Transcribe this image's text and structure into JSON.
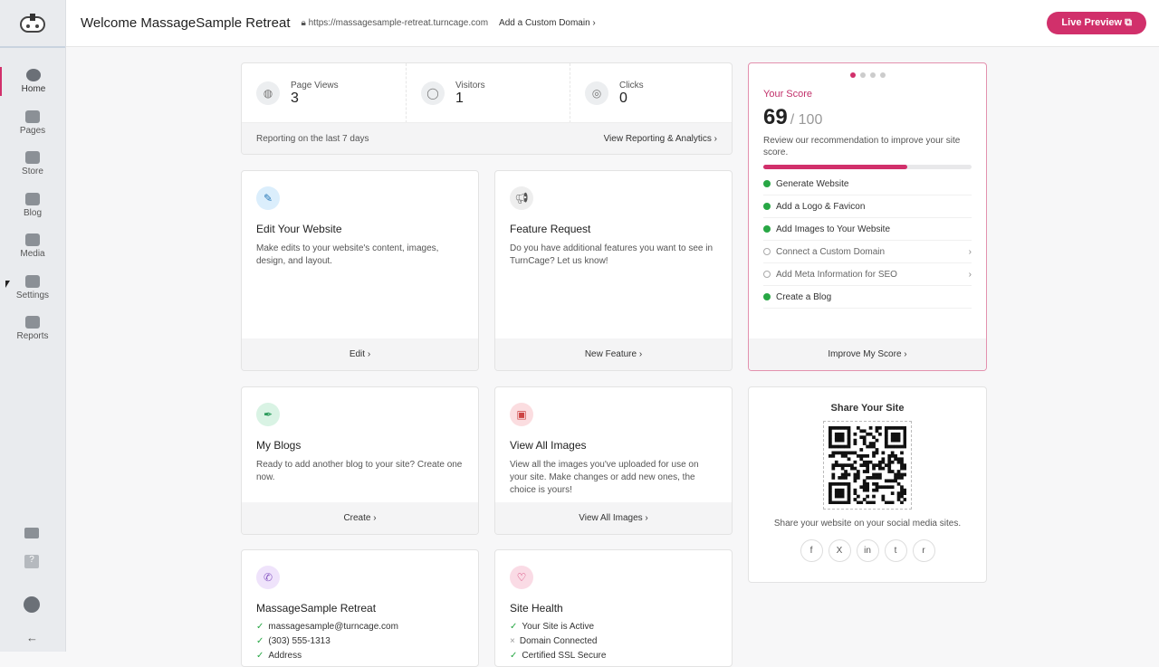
{
  "header": {
    "title": "Welcome MassageSample Retreat",
    "url": "https://massagesample-retreat.turncage.com",
    "custom_domain": "Add a Custom Domain",
    "live_preview": "Live Preview"
  },
  "sidebar": {
    "items": [
      {
        "label": "Home",
        "icon": "gauge-icon"
      },
      {
        "label": "Pages",
        "icon": "pages-icon"
      },
      {
        "label": "Store",
        "icon": "store-icon"
      },
      {
        "label": "Blog",
        "icon": "pencil-icon"
      },
      {
        "label": "Media",
        "icon": "image-icon"
      },
      {
        "label": "Settings",
        "icon": "sliders-icon"
      },
      {
        "label": "Reports",
        "icon": "bar-chart-icon"
      }
    ]
  },
  "stats": {
    "items": [
      {
        "label": "Page Views",
        "value": "3"
      },
      {
        "label": "Visitors",
        "value": "1"
      },
      {
        "label": "Clicks",
        "value": "0"
      }
    ],
    "note": "Reporting on the last 7 days",
    "link": "View Reporting & Analytics"
  },
  "cards": [
    {
      "title": "Edit Your Website",
      "desc": "Make edits to your website's content, images, design, and layout.",
      "action": "Edit"
    },
    {
      "title": "Feature Request",
      "desc": "Do you have additional features you want to see in TurnCage? Let us know!",
      "action": "New Feature"
    },
    {
      "title": "My Blogs",
      "desc": "Ready to add another blog to your site? Create one now.",
      "action": "Create"
    },
    {
      "title": "View All Images",
      "desc": "View all the images you've uploaded for use on your site. Make changes or add new ones, the choice is yours!",
      "action": "View All Images"
    }
  ],
  "contact": {
    "title": "MassageSample Retreat",
    "items": [
      "massagesample@turncage.com",
      "(303) 555-1313",
      "Address"
    ]
  },
  "health": {
    "title": "Site Health",
    "items": [
      {
        "text": "Your Site is Active",
        "ok": true
      },
      {
        "text": "Domain Connected",
        "ok": false
      },
      {
        "text": "Certified SSL Secure",
        "ok": true
      }
    ]
  },
  "score": {
    "title": "Your Score",
    "value": "69",
    "max": "/ 100",
    "percent": 69,
    "desc": "Review our recommendation to improve your site score.",
    "items": [
      {
        "text": "Generate Website",
        "done": true
      },
      {
        "text": "Add a Logo & Favicon",
        "done": true
      },
      {
        "text": "Add Images to Your Website",
        "done": true
      },
      {
        "text": "Connect a Custom Domain",
        "done": false
      },
      {
        "text": "Add Meta Information for SEO",
        "done": false
      },
      {
        "text": "Create a Blog",
        "done": true
      }
    ],
    "action": "Improve My Score"
  },
  "share": {
    "title": "Share Your Site",
    "desc": "Share your website on your social media sites.",
    "socials": [
      "f",
      "X",
      "in",
      "t",
      "r"
    ]
  },
  "colors": {
    "accent": "#d1306b",
    "success": "#28a745"
  }
}
